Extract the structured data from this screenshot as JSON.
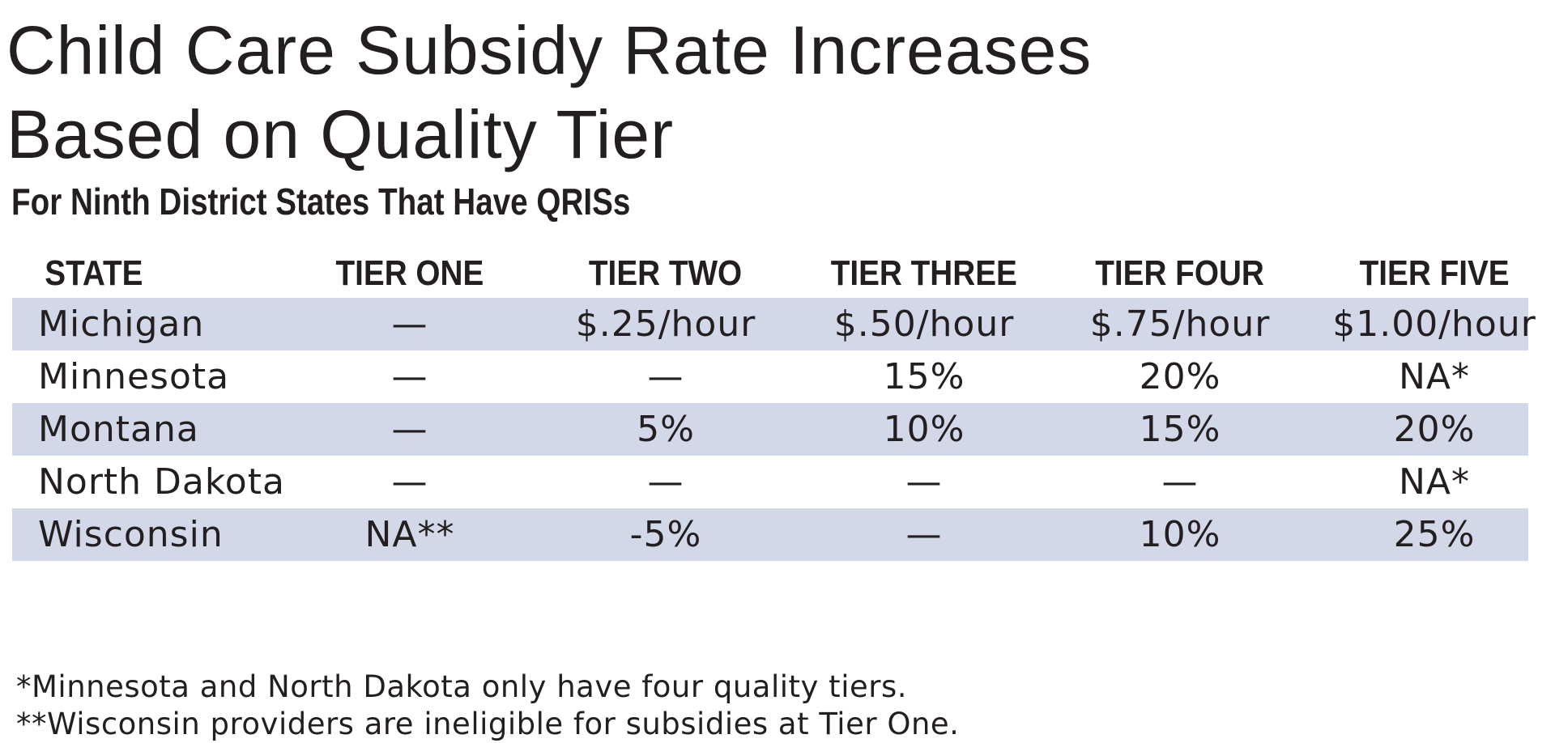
{
  "title": {
    "line1": "Child Care Subsidy Rate Increases",
    "line2": "Based on Quality Tier"
  },
  "subtitle": "For Ninth District States That Have QRISs",
  "table": {
    "headers": [
      "STATE",
      "TIER ONE",
      "TIER TWO",
      "TIER THREE",
      "TIER FOUR",
      "TIER FIVE"
    ],
    "rows": [
      [
        "Michigan",
        "—",
        "$.25/hour",
        "$.50/hour",
        "$.75/hour",
        "$1.00/hour"
      ],
      [
        "Minnesota",
        "—",
        "—",
        "15%",
        "20%",
        "NA*"
      ],
      [
        "Montana",
        "—",
        "5%",
        "10%",
        "15%",
        "20%"
      ],
      [
        "North Dakota",
        "—",
        "—",
        "—",
        "—",
        "NA*"
      ],
      [
        "Wisconsin",
        "NA**",
        "-5%",
        "—",
        "10%",
        "25%"
      ]
    ]
  },
  "footnotes": [
    "*Minnesota and North Dakota only have four quality tiers.",
    "**Wisconsin providers are ineligible for subsidies at Tier One."
  ],
  "colors": {
    "band": "#d3d8e9",
    "text": "#231f20"
  }
}
